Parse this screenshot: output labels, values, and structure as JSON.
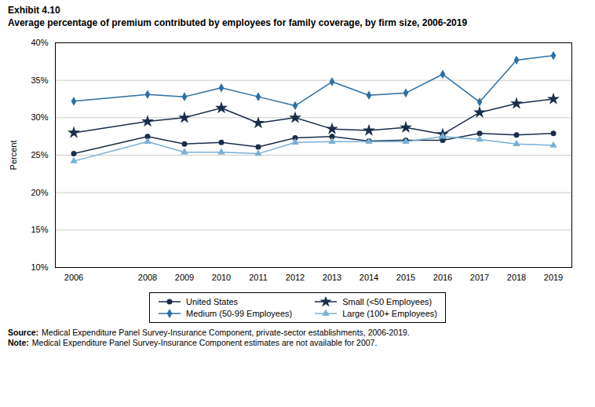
{
  "chart_data": {
    "type": "line",
    "title": "Exhibit 4.10",
    "subtitle": "Average percentage of premium contributed by employees for family coverage, by firm size, 2006-2019",
    "x": [
      2006,
      2008,
      2009,
      2010,
      2011,
      2012,
      2013,
      2014,
      2015,
      2016,
      2017,
      2018,
      2019
    ],
    "series": [
      {
        "name": "United States",
        "color": "#1a2e4a",
        "marker": "circle",
        "values": [
          25.2,
          27.5,
          26.5,
          26.7,
          26.1,
          27.3,
          27.5,
          26.9,
          27.0,
          27.0,
          27.9,
          27.7,
          27.9
        ]
      },
      {
        "name": "Small (<50 Employees)",
        "color": "#1a2e4a",
        "marker": "star",
        "values": [
          28.0,
          29.5,
          30.0,
          31.3,
          29.3,
          30.0,
          28.5,
          28.3,
          28.7,
          27.8,
          30.7,
          31.9,
          32.5
        ]
      },
      {
        "name": "Medium (50-99 Employees)",
        "color": "#2e6fa3",
        "marker": "diamond",
        "values": [
          32.2,
          33.1,
          32.8,
          34.0,
          32.8,
          31.6,
          34.8,
          33.0,
          33.3,
          35.8,
          32.1,
          37.7,
          38.3
        ]
      },
      {
        "name": "Large (100+ Employees)",
        "color": "#7bafd4",
        "marker": "triangle",
        "values": [
          24.2,
          26.8,
          25.4,
          25.4,
          25.2,
          26.7,
          26.8,
          26.8,
          26.8,
          27.5,
          27.1,
          26.5,
          26.3
        ]
      }
    ],
    "xlim": [
      2005.5,
      2019.5
    ],
    "xticks": [
      2006,
      2008,
      2009,
      2010,
      2011,
      2012,
      2013,
      2014,
      2015,
      2016,
      2017,
      2018,
      2019
    ],
    "ylabel": "Percent",
    "ylim": [
      10,
      40
    ],
    "yticks": [
      {
        "value": 10,
        "label": "10%"
      },
      {
        "value": 15,
        "label": "15%"
      },
      {
        "value": 20,
        "label": "20%"
      },
      {
        "value": 25,
        "label": "25%"
      },
      {
        "value": 30,
        "label": "30%"
      },
      {
        "value": 35,
        "label": "35%"
      },
      {
        "value": 40,
        "label": "40%"
      }
    ],
    "grid": "y",
    "legend": "bottom",
    "annotations": [
      {
        "label": "Source:",
        "text": "Medical Expenditure Panel Survey-Insurance Component, private-sector establishments, 2006-2019."
      },
      {
        "label": "Note:",
        "text": "Medical Expenditure Panel Survey-Insurance Component estimates are not available for 2007."
      }
    ]
  }
}
